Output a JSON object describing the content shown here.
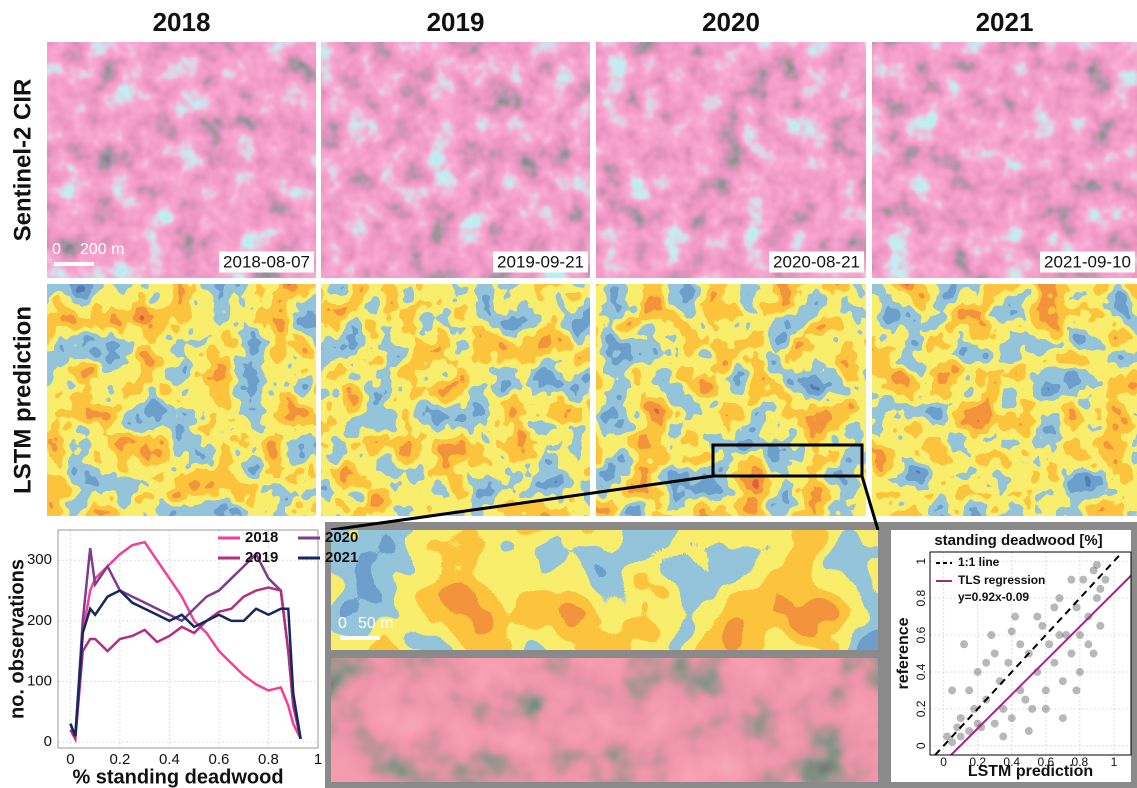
{
  "figure": {
    "years": [
      "2018",
      "2019",
      "2020",
      "2021"
    ],
    "rows": [
      "Sentinel-2 CIR",
      "LSTM prediction"
    ],
    "dates": [
      "2018-08-07",
      "2019-09-21",
      "2020-08-21",
      "2021-09-10"
    ],
    "scale_bar": [
      "0",
      "200 m"
    ],
    "inset_scale_bar": [
      "0",
      "50 m"
    ]
  },
  "chart_data": [
    {
      "type": "line",
      "xlabel": "% standing deadwood",
      "ylabel": "no. observations",
      "x": [
        0,
        0.02,
        0.05,
        0.08,
        0.1,
        0.15,
        0.2,
        0.25,
        0.3,
        0.35,
        0.4,
        0.45,
        0.5,
        0.55,
        0.6,
        0.65,
        0.7,
        0.75,
        0.8,
        0.85,
        0.88,
        0.9,
        0.93
      ],
      "series": [
        {
          "name": "2018",
          "color": "#f0409a",
          "values": [
            20,
            10,
            180,
            250,
            270,
            290,
            310,
            325,
            330,
            300,
            270,
            240,
            200,
            180,
            150,
            130,
            110,
            95,
            85,
            90,
            60,
            30,
            5
          ]
        },
        {
          "name": "2020",
          "color": "#7e3c8e",
          "values": [
            30,
            10,
            200,
            320,
            260,
            290,
            250,
            240,
            230,
            220,
            210,
            200,
            220,
            240,
            250,
            270,
            290,
            310,
            270,
            250,
            150,
            60,
            5
          ]
        },
        {
          "name": "2019",
          "color": "#b0307e",
          "values": [
            20,
            5,
            150,
            170,
            170,
            150,
            170,
            175,
            185,
            165,
            175,
            190,
            180,
            200,
            215,
            220,
            240,
            250,
            255,
            250,
            150,
            60,
            5
          ]
        },
        {
          "name": "2021",
          "color": "#14285e",
          "values": [
            30,
            10,
            180,
            220,
            210,
            240,
            250,
            230,
            220,
            210,
            200,
            210,
            190,
            200,
            210,
            200,
            200,
            220,
            210,
            220,
            220,
            80,
            5
          ]
        }
      ],
      "xlim": [
        -0.05,
        1.0
      ],
      "xticks": [
        0,
        0.2,
        0.4,
        0.6,
        0.8,
        1
      ],
      "ylim": [
        -10,
        350
      ],
      "yticks": [
        0,
        100,
        200,
        300
      ],
      "grid": true,
      "legend": "top-right"
    },
    {
      "type": "scatter",
      "title": "standing deadwood [%]",
      "xlabel": "LSTM prediction",
      "ylabel": "reference",
      "x": [
        0.02,
        0.05,
        0.08,
        0.1,
        0.12,
        0.15,
        0.18,
        0.2,
        0.22,
        0.25,
        0.28,
        0.3,
        0.33,
        0.35,
        0.38,
        0.4,
        0.42,
        0.45,
        0.48,
        0.5,
        0.52,
        0.55,
        0.58,
        0.6,
        0.62,
        0.65,
        0.68,
        0.7,
        0.72,
        0.75,
        0.78,
        0.8,
        0.82,
        0.85,
        0.88,
        0.9,
        0.92,
        0.95,
        0.05,
        0.1,
        0.15,
        0.2,
        0.3,
        0.4,
        0.5,
        0.6,
        0.7,
        0.8,
        0.85,
        0.9,
        0.75,
        0.65,
        0.55,
        0.45,
        0.35,
        0.25,
        0.88,
        0.92,
        0.78,
        0.68
      ],
      "values": [
        0.05,
        0.3,
        0.1,
        0.15,
        0.55,
        0.08,
        0.2,
        0.4,
        0.1,
        0.25,
        0.6,
        0.12,
        0.35,
        0.2,
        0.45,
        0.15,
        0.7,
        0.3,
        0.25,
        0.5,
        0.2,
        0.4,
        0.65,
        0.3,
        0.55,
        0.45,
        0.8,
        0.35,
        0.6,
        0.5,
        0.75,
        0.6,
        0.9,
        0.7,
        0.95,
        0.8,
        0.65,
        0.9,
        0.02,
        0.05,
        0.3,
        0.12,
        0.5,
        0.62,
        0.08,
        0.2,
        0.15,
        0.4,
        0.55,
        0.98,
        0.9,
        0.75,
        0.7,
        0.55,
        0.05,
        0.45,
        0.5,
        0.85,
        0.3,
        0.6
      ],
      "color": "#333333",
      "one_to_one": {
        "name": "1:1 line",
        "color": "#000000"
      },
      "regression": {
        "name": "TLS regression",
        "color": "#a0287e",
        "equation": "y=0.92x-0.09",
        "slope": 0.92,
        "intercept": -0.09
      },
      "xlim": [
        -0.08,
        1.1
      ],
      "xticks": [
        0,
        0.2,
        0.4,
        0.6,
        0.8,
        1
      ],
      "ylim": [
        -0.05,
        1.05
      ],
      "yticks": [
        0,
        0.2,
        0.4,
        0.6,
        0.8,
        1
      ],
      "grid": true,
      "legend": "top-left"
    }
  ]
}
